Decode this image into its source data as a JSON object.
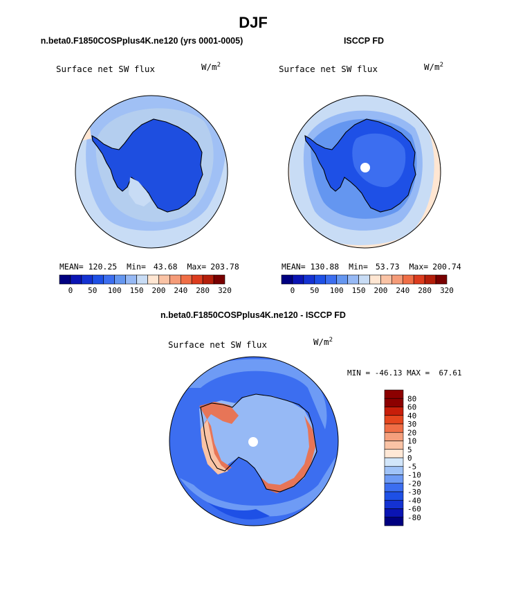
{
  "figure": {
    "title": "DJF",
    "bottom_title": "n.beta0.F1850COSPplus4K.ne120 - ISCCP FD"
  },
  "colors": {
    "abs_levels": [
      "#000080",
      "#0a14b4",
      "#1432d2",
      "#1e50e6",
      "#3c6ef0",
      "#6496f0",
      "#96b9f5",
      "#c8dcf5",
      "#ffe6d2",
      "#fac3a5",
      "#f59b78",
      "#f06e46",
      "#dc3c1e",
      "#b41e0a",
      "#780000"
    ],
    "diff_levels": [
      "#000080",
      "#0a14b4",
      "#1432d2",
      "#1e50e6",
      "#3c6ef0",
      "#6e9bf5",
      "#a0c3f8",
      "#d2e6fa",
      "#ffe8d6",
      "#fac3a5",
      "#f5a07d",
      "#f06e46",
      "#e6461e",
      "#c81e0a",
      "#8c0000"
    ],
    "coast": "#000000",
    "land_dark": "#1e4ee0"
  },
  "chart_data": [
    {
      "type": "heatmap",
      "projection": "polar-stereographic (south pole)",
      "title": "n.beta0.F1850COSPplus4K.ne120 (yrs 0001-0005)",
      "field_label": "Surface net SW flux",
      "units": "W/m",
      "units_exp": "2",
      "mean_label": "MEAN=",
      "mean": "120.25",
      "min_label": "Min=",
      "min": "43.68",
      "max_label": "Max=",
      "max": "203.78",
      "colorbar_ticks": [
        "0",
        "50",
        "100",
        "150",
        "200",
        "240",
        "280",
        "320"
      ]
    },
    {
      "type": "heatmap",
      "projection": "polar-stereographic (south pole)",
      "title": "ISCCP FD",
      "field_label": "Surface net SW flux",
      "units": "W/m",
      "units_exp": "2",
      "mean_label": "MEAN=",
      "mean": "130.88",
      "min_label": "Min=",
      "min": "53.73",
      "max_label": "Max=",
      "max": "200.74",
      "colorbar_ticks": [
        "0",
        "50",
        "100",
        "150",
        "200",
        "240",
        "280",
        "320"
      ]
    },
    {
      "type": "heatmap",
      "projection": "polar-stereographic (south pole)",
      "title": "n.beta0.F1850COSPplus4K.ne120 - ISCCP FD",
      "field_label": "Surface net SW flux",
      "units": "W/m",
      "units_exp": "2",
      "min_max_label": "MIN = -46.13 MAX =  67.61",
      "min": -46.13,
      "max": 67.61,
      "colorbar_ticks": [
        "80",
        "60",
        "40",
        "30",
        "20",
        "10",
        "5",
        "0",
        "-5",
        "-10",
        "-20",
        "-30",
        "-40",
        "-60",
        "-80"
      ]
    }
  ]
}
